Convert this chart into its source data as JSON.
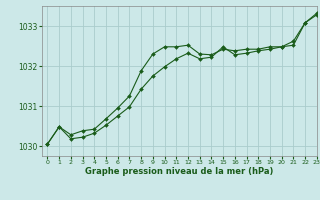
{
  "title": "Graphe pression niveau de la mer (hPa)",
  "bg_color": "#cce8e8",
  "grid_color": "#aacccc",
  "line_color": "#1a5c1a",
  "xlim": [
    -0.5,
    23
  ],
  "ylim": [
    1029.75,
    1033.5
  ],
  "yticks": [
    1030,
    1031,
    1032,
    1033
  ],
  "xticks": [
    0,
    1,
    2,
    3,
    4,
    5,
    6,
    7,
    8,
    9,
    10,
    11,
    12,
    13,
    14,
    15,
    16,
    17,
    18,
    19,
    20,
    21,
    22,
    23
  ],
  "line1_x": [
    0,
    1,
    2,
    3,
    4,
    5,
    6,
    7,
    8,
    9,
    10,
    11,
    12,
    13,
    14,
    15,
    16,
    17,
    18,
    19,
    20,
    21,
    22,
    23
  ],
  "line1_y": [
    1030.05,
    1030.48,
    1030.28,
    1030.38,
    1030.42,
    1030.68,
    1030.95,
    1031.25,
    1031.88,
    1032.3,
    1032.48,
    1032.48,
    1032.52,
    1032.3,
    1032.28,
    1032.42,
    1032.38,
    1032.42,
    1032.42,
    1032.48,
    1032.48,
    1032.52,
    1033.08,
    1033.28
  ],
  "line2_x": [
    0,
    1,
    2,
    3,
    4,
    5,
    6,
    7,
    8,
    9,
    10,
    11,
    12,
    13,
    14,
    15,
    16,
    17,
    18,
    19,
    20,
    21,
    22,
    23
  ],
  "line2_y": [
    1030.05,
    1030.48,
    1030.18,
    1030.22,
    1030.32,
    1030.52,
    1030.75,
    1030.98,
    1031.42,
    1031.75,
    1031.98,
    1032.18,
    1032.32,
    1032.18,
    1032.22,
    1032.48,
    1032.28,
    1032.32,
    1032.38,
    1032.42,
    1032.48,
    1032.62,
    1033.08,
    1033.32
  ]
}
